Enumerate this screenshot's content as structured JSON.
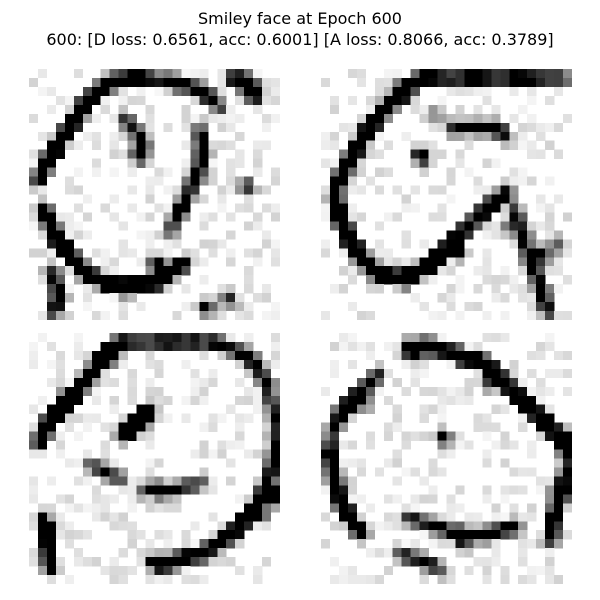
{
  "figure": {
    "title": "Smiley face at Epoch 600",
    "subtitle": "600: [D loss: 0.6561, acc: 0.6001]  [A loss: 0.8066, acc: 0.3789]",
    "colormap": "greys",
    "grid_size": 28
  },
  "panels": [
    {
      "name": "sample-1"
    },
    {
      "name": "sample-2"
    },
    {
      "name": "sample-3"
    },
    {
      "name": "sample-4"
    }
  ]
}
